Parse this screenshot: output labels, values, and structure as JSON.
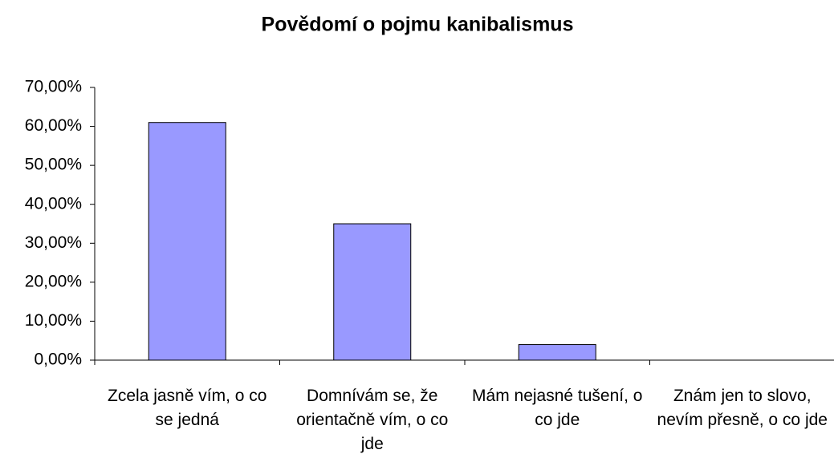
{
  "chart_data": {
    "type": "bar",
    "title": "Povědomí o pojmu kanibalismus",
    "categories": [
      "Zcela jasně vím, o co se jedná",
      "Domnívám se, že orientačně vím, o co jde",
      "Mám nejasné tušení, o co jde",
      "Znám jen to slovo, nevím přesně, o co jde"
    ],
    "values": [
      61,
      35,
      4,
      0
    ],
    "color": "#9999ff",
    "ylim": [
      0,
      70
    ],
    "yticks": [
      {
        "value": 0,
        "label": "0,00%"
      },
      {
        "value": 10,
        "label": "10,00%"
      },
      {
        "value": 20,
        "label": "20,00%"
      },
      {
        "value": 30,
        "label": "30,00%"
      },
      {
        "value": 40,
        "label": "40,00%"
      },
      {
        "value": 50,
        "label": "50,00%"
      },
      {
        "value": 60,
        "label": "60,00%"
      },
      {
        "value": 70,
        "label": "70,00%"
      }
    ],
    "grid": false
  }
}
